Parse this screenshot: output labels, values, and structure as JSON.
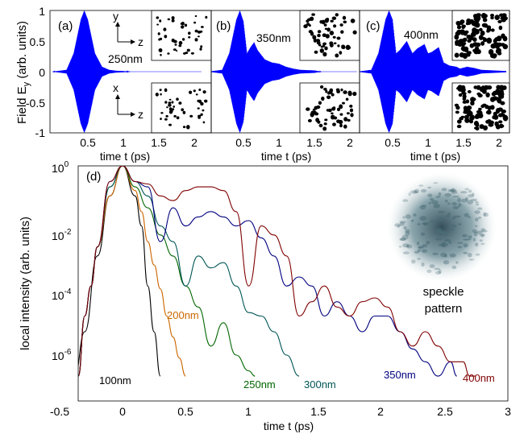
{
  "colors": {
    "field": "#0000ff",
    "s100": "#000000",
    "s200": "#cc6600",
    "s250": "#006600",
    "s300": "#005555",
    "s350": "#00007f",
    "s400": "#7f0000",
    "speckle": "#4a6b76"
  },
  "top_panels": {
    "ylabel": "Field E",
    "ylabel_sub": "y",
    "ylabel_tail": " (arb. units)",
    "xlabel": "time t (ps)",
    "yticks": [
      "-1",
      "-0.5",
      "0",
      "0.5",
      "1"
    ],
    "xticks": [
      "0.5",
      "1",
      "1.5",
      "2"
    ],
    "panels": [
      {
        "tag": "(a)",
        "size_label": "250nm",
        "axes_top": [
          "y",
          "z"
        ],
        "axes_bottom": [
          "x",
          "z"
        ]
      },
      {
        "tag": "(b)",
        "size_label": "350nm"
      },
      {
        "tag": "(c)",
        "size_label": "400nm"
      }
    ]
  },
  "bottom_panel": {
    "tag": "(d)",
    "ylabel": "local intensity (arb. units)",
    "xlabel": "time t (ps)",
    "xticks": [
      "-0.5",
      "0",
      "0.5",
      "1",
      "1.5",
      "2",
      "2.5",
      "3"
    ],
    "yticks": [
      {
        "base": "10",
        "exp": "0"
      },
      {
        "base": "10",
        "exp": "-2"
      },
      {
        "base": "10",
        "exp": "-4"
      },
      {
        "base": "10",
        "exp": "-6"
      }
    ],
    "speckle_label_1": "speckle",
    "speckle_label_2": "pattern",
    "series_labels": [
      "100nm",
      "200nm",
      "250nm",
      "300nm",
      "350nm",
      "400nm"
    ]
  },
  "chart_data": [
    {
      "type": "line",
      "panel": "(a)",
      "title": "",
      "xlabel": "time t (ps)",
      "ylabel": "Field Ey (arb. units)",
      "xlim": [
        0,
        2.1
      ],
      "ylim": [
        -1,
        1
      ],
      "series": [
        {
          "name": "250nm",
          "envelope": {
            "x": [
              0,
              0.2,
              0.3,
              0.4,
              0.45,
              0.5,
              0.6,
              0.7,
              0.8,
              0.9,
              1.0,
              1.1
            ],
            "y": [
              0,
              0.03,
              0.3,
              0.85,
              1.0,
              0.85,
              0.3,
              0.08,
              0.03,
              0.015,
              0.01,
              0
            ]
          }
        }
      ]
    },
    {
      "type": "line",
      "panel": "(b)",
      "title": "",
      "xlabel": "time t (ps)",
      "ylabel": "Field Ey (arb. units)",
      "xlim": [
        0,
        2.1
      ],
      "ylim": [
        -1,
        1
      ],
      "series": [
        {
          "name": "350nm",
          "envelope": {
            "x": [
              0,
              0.2,
              0.3,
              0.4,
              0.45,
              0.5,
              0.55,
              0.6,
              0.65,
              0.7,
              0.8,
              0.9,
              1.0,
              1.1,
              1.2,
              1.3,
              1.5,
              1.6
            ],
            "y": [
              0,
              0.03,
              0.3,
              0.85,
              1.0,
              0.82,
              0.3,
              0.4,
              0.48,
              0.35,
              0.2,
              0.15,
              0.13,
              0.08,
              0.05,
              0.03,
              0.02,
              0.0
            ]
          }
        }
      ]
    },
    {
      "type": "line",
      "panel": "(c)",
      "title": "",
      "xlabel": "time t (ps)",
      "ylabel": "Field Ey (arb. units)",
      "xlim": [
        0,
        2.1
      ],
      "ylim": [
        -1,
        1
      ],
      "series": [
        {
          "name": "400nm",
          "envelope": {
            "x": [
              0,
              0.2,
              0.3,
              0.4,
              0.45,
              0.5,
              0.55,
              0.6,
              0.7,
              0.78,
              0.85,
              0.95,
              1.0,
              1.05,
              1.15,
              1.22,
              1.3,
              1.4,
              1.45,
              1.55,
              1.65,
              1.75,
              2.1
            ],
            "y": [
              0,
              0.03,
              0.3,
              0.85,
              1.0,
              0.85,
              0.3,
              0.35,
              0.5,
              0.3,
              0.38,
              0.45,
              0.3,
              0.32,
              0.4,
              0.15,
              0.1,
              0.08,
              0.05,
              0.08,
              0.06,
              0.03,
              0.01
            ]
          }
        }
      ]
    },
    {
      "type": "line",
      "panel": "(d)",
      "title": "",
      "xlabel": "time t (ps)",
      "ylabel": "local intensity (arb. units)",
      "xlim": [
        -0.5,
        3
      ],
      "ylim": [
        1e-07,
        1
      ],
      "yscale": "log",
      "series": [
        {
          "name": "100nm",
          "x": [
            -0.38,
            -0.3,
            -0.2,
            -0.1,
            0,
            0.1,
            0.15,
            0.2,
            0.25,
            0.3
          ],
          "y": [
            1e-07,
            3e-06,
            0.001,
            0.1,
            1,
            0.1,
            0.01,
            0.0001,
            3e-06,
            1e-07
          ]
        },
        {
          "name": "200nm",
          "x": [
            -0.35,
            -0.3,
            -0.25,
            -0.2,
            -0.1,
            0,
            0.1,
            0.15,
            0.2,
            0.25,
            0.3,
            0.35,
            0.4,
            0.45,
            0.5
          ],
          "y": [
            1e-07,
            1e-05,
            0.0001,
            0.002,
            0.1,
            1,
            0.15,
            0.03,
            0.003,
            0.0005,
            8e-05,
            1e-05,
            2e-06,
            4e-07,
            1e-07
          ]
        },
        {
          "name": "250nm",
          "x": [
            -0.35,
            -0.3,
            -0.25,
            -0.2,
            -0.1,
            0,
            0.1,
            0.2,
            0.3,
            0.4,
            0.5,
            0.6,
            0.7,
            0.8,
            0.9,
            1.0,
            1.05
          ],
          "y": [
            1e-07,
            1e-05,
            0.0001,
            0.002,
            0.2,
            1,
            0.2,
            0.04,
            0.005,
            0.001,
            0.0001,
            2e-05,
            1e-06,
            6e-06,
            5e-07,
            1.5e-07,
            1e-07
          ]
        },
        {
          "name": "300nm",
          "x": [
            -0.35,
            -0.3,
            -0.25,
            -0.2,
            -0.1,
            0,
            0.1,
            0.2,
            0.3,
            0.4,
            0.5,
            0.6,
            0.7,
            0.8,
            0.9,
            1.0,
            1.1,
            1.2,
            1.3,
            1.4
          ],
          "y": [
            1e-07,
            1e-05,
            0.0001,
            0.002,
            0.2,
            1,
            0.3,
            0.1,
            0.01,
            0.003,
            0.0001,
            0.001,
            0.0004,
            0.0006,
            0.0001,
            1.3e-05,
            1e-05,
            3e-06,
            5e-07,
            1e-07
          ]
        },
        {
          "name": "350nm",
          "x": [
            -0.35,
            -0.3,
            -0.25,
            -0.2,
            -0.1,
            0,
            0.1,
            0.2,
            0.3,
            0.4,
            0.5,
            0.6,
            0.7,
            0.8,
            0.9,
            1.0,
            1.1,
            1.2,
            1.3,
            1.4,
            1.5,
            1.6,
            1.7,
            1.8,
            1.9,
            2.0,
            2.1,
            2.2,
            2.3,
            2.4,
            2.5,
            2.6,
            2.65
          ],
          "y": [
            1e-07,
            1e-05,
            0.0001,
            0.002,
            0.3,
            1,
            0.3,
            0.2,
            0.003,
            0.04,
            0.01,
            0.02,
            0.03,
            0.02,
            0.01,
            0.015,
            0.004,
            0.001,
            0.0001,
            0.0002,
            0.0001,
            1e-05,
            3e-05,
            1e-05,
            3e-06,
            1e-05,
            1e-05,
            3e-06,
            8e-07,
            3e-07,
            1e-07,
            3e-07,
            1e-07
          ]
        },
        {
          "name": "400nm",
          "x": [
            -0.35,
            -0.3,
            -0.25,
            -0.2,
            -0.1,
            0,
            0.1,
            0.2,
            0.3,
            0.4,
            0.5,
            0.6,
            0.7,
            0.8,
            0.9,
            1.0,
            1.1,
            1.2,
            1.3,
            1.4,
            1.5,
            1.6,
            1.7,
            1.8,
            1.9,
            2.0,
            2.1,
            2.2,
            2.3,
            2.4,
            2.5,
            2.6,
            2.7,
            2.75,
            2.8
          ],
          "y": [
            1e-07,
            1e-05,
            0.0001,
            0.002,
            0.3,
            1,
            0.3,
            0.25,
            0.1,
            0.07,
            0.15,
            0.2,
            0.2,
            0.15,
            0.03,
            0.0001,
            0.01,
            0.005,
            0.001,
            1e-05,
            3e-05,
            0.0001,
            2e-05,
            1e-05,
            3e-05,
            4e-05,
            2e-05,
            3e-06,
            1e-06,
            3e-06,
            1e-06,
            3e-07,
            3e-07,
            1e-07,
            1e-07
          ]
        }
      ]
    }
  ]
}
